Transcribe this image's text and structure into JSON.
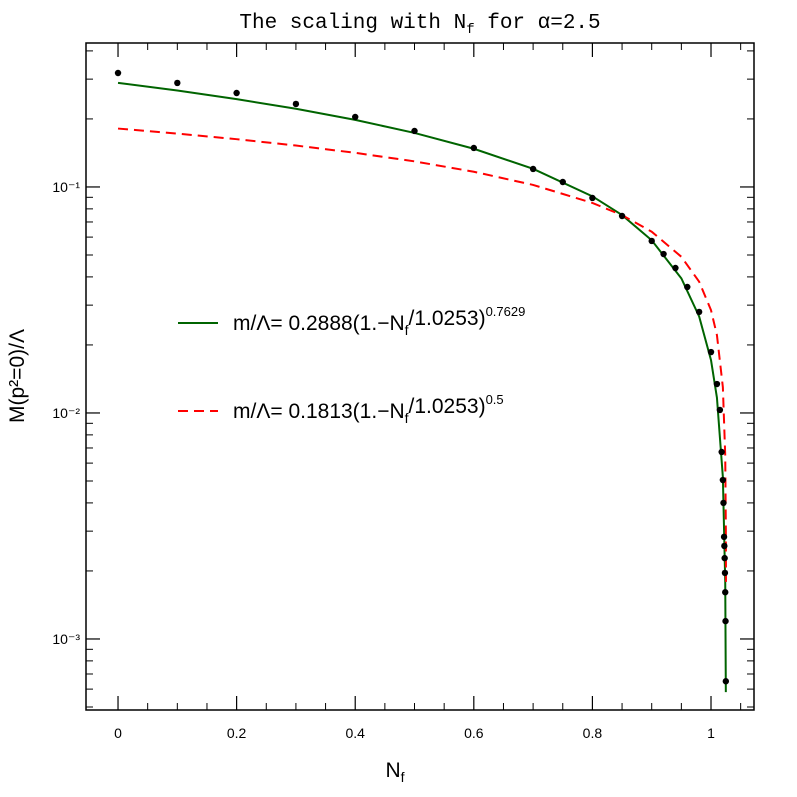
{
  "chart_data": {
    "type": "line",
    "title": [
      "The scaling with N",
      "f",
      " for α=2.5"
    ],
    "xlabel": [
      "N",
      "f"
    ],
    "ylabel": "M(p²=0)/Λ",
    "log_y": true,
    "xlim": [
      -0.054,
      1.0725
    ],
    "ylim": [
      0.000485,
      0.4335
    ],
    "xticks": [
      0,
      0.2,
      0.4,
      0.6,
      0.8,
      1
    ],
    "xminorticks": [
      0.05,
      0.1,
      0.15,
      0.25,
      0.3,
      0.35,
      0.45,
      0.5,
      0.55,
      0.65,
      0.7,
      0.75,
      0.85,
      0.9,
      0.95,
      1.05
    ],
    "yticks": [
      {
        "value": 0.1,
        "label": "10⁻¹"
      },
      {
        "value": 0.01,
        "label": "10⁻²"
      },
      {
        "value": 0.001,
        "label": "10⁻³"
      }
    ],
    "yminorticks": [
      0.3,
      0.4,
      0.2,
      0.09,
      0.08,
      0.07,
      0.06,
      0.05,
      0.04,
      0.03,
      0.02,
      0.009,
      0.008,
      0.007,
      0.006,
      0.005,
      0.004,
      0.003,
      0.002,
      0.0009,
      0.0008,
      0.0007,
      0.0006,
      0.0005
    ],
    "series": [
      {
        "name": [
          "m/Λ= 0.2888(1.−N",
          "f",
          "/1.0253)",
          "0.7629"
        ],
        "style": "solid",
        "color": "#006400",
        "x": [
          0,
          0.1,
          0.2,
          0.3,
          0.4,
          0.5,
          0.6,
          0.7,
          0.8,
          0.85,
          0.9,
          0.95,
          0.98,
          1.0,
          1.01,
          1.02,
          1.024,
          1.025
        ],
        "values": [
          0.2888,
          0.2671,
          0.2447,
          0.2218,
          0.1981,
          0.1734,
          0.1476,
          0.1203,
          0.0909,
          0.0751,
          0.0581,
          0.0394,
          0.02674,
          0.01714,
          0.01168,
          0.0052,
          0.00178,
          0.000582
        ]
      },
      {
        "name": [
          "m/Λ= 0.1813(1.−N",
          "f",
          "/1.0253)",
          "0.5"
        ],
        "style": "dashed",
        "color": "#ff0000",
        "x": [
          0,
          0.1,
          0.2,
          0.3,
          0.4,
          0.5,
          0.6,
          0.7,
          0.8,
          0.85,
          0.9,
          0.95,
          0.98,
          1.0,
          1.01,
          1.02,
          1.024,
          1.025,
          1.0252
        ],
        "values": [
          0.1813,
          0.1722,
          0.1627,
          0.1525,
          0.1416,
          0.1298,
          0.1168,
          0.1021,
          0.085,
          0.075,
          0.0634,
          0.0491,
          0.0381,
          0.0285,
          0.0221,
          0.013,
          0.00646,
          0.0031,
          0.00179
        ]
      },
      {
        "style": "points",
        "color": "#000000",
        "x": [
          0,
          0.1,
          0.2,
          0.3,
          0.4,
          0.5,
          0.6,
          0.7,
          0.75,
          0.8,
          0.85,
          0.9,
          0.92,
          0.94,
          0.96,
          0.98,
          1.0,
          1.01,
          1.015,
          1.018,
          1.02,
          1.021,
          1.022,
          1.0225,
          1.023,
          1.0235,
          1.024,
          1.0245,
          1.025
        ],
        "values": [
          0.3193,
          0.2886,
          0.2605,
          0.233,
          0.204,
          0.1769,
          0.1488,
          0.1201,
          0.1052,
          0.0894,
          0.0744,
          0.0577,
          0.0505,
          0.0438,
          0.0361,
          0.028,
          0.0186,
          0.01343,
          0.01031,
          0.00672,
          0.00505,
          0.004,
          0.00283,
          0.00258,
          0.00228,
          0.00196,
          0.00161,
          0.0012,
          0.00065
        ]
      }
    ]
  }
}
